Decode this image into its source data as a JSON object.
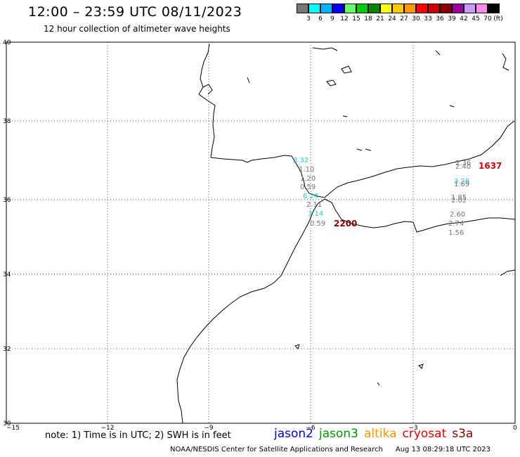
{
  "header": {
    "title": "12:00 – 23:59 UTC 08/11/2023",
    "subtitle": "12 hour collection of altimeter wave heights"
  },
  "legend": {
    "unit": "(ft)",
    "steps": [
      {
        "label": "3",
        "color": "#777777"
      },
      {
        "label": "6",
        "color": "#00ffff"
      },
      {
        "label": "9",
        "color": "#00b4ff"
      },
      {
        "label": "12",
        "color": "#0000ff"
      },
      {
        "label": "15",
        "color": "#66ff66"
      },
      {
        "label": "18",
        "color": "#00cc00"
      },
      {
        "label": "21",
        "color": "#008800"
      },
      {
        "label": "24",
        "color": "#ffff00"
      },
      {
        "label": "27",
        "color": "#ffcc00"
      },
      {
        "label": "30",
        "color": "#ff9900"
      },
      {
        "label": "33",
        "color": "#ff0000"
      },
      {
        "label": "36",
        "color": "#cc0000"
      },
      {
        "label": "39",
        "color": "#880000"
      },
      {
        "label": "42",
        "color": "#990099"
      },
      {
        "label": "45",
        "color": "#cc99ff"
      },
      {
        "label": "70",
        "color": "#ff88ee"
      },
      {
        "label": "",
        "color": "#000000"
      }
    ]
  },
  "axes": {
    "lon_ticks": [
      "−15",
      "−12",
      "−9",
      "−6",
      "−3",
      "0"
    ],
    "lat_ticks": [
      "40",
      "38",
      "36",
      "34",
      "32",
      "30"
    ]
  },
  "observations": [
    {
      "text": "3.32",
      "color": "#22cccc"
    },
    {
      "text": "1.10",
      "color": "#777777"
    },
    {
      "text": "1.20",
      "color": "#777777"
    },
    {
      "text": "0.59",
      "color": "#777777"
    },
    {
      "text": "6.24",
      "color": "#22cccc"
    },
    {
      "text": "2.11",
      "color": "#777777"
    },
    {
      "text": "3.14",
      "color": "#22cccc"
    },
    {
      "text": "0.59",
      "color": "#777777"
    },
    {
      "text": "2200",
      "color": "#8b0000"
    },
    {
      "text": "2.36",
      "color": "#777777"
    },
    {
      "text": "2.40",
      "color": "#777777"
    },
    {
      "text": "1637",
      "color": "#dd0000"
    },
    {
      "text": "3.28",
      "color": "#22cccc"
    },
    {
      "text": "1.69",
      "color": "#777777"
    },
    {
      "text": "1.85",
      "color": "#777777"
    },
    {
      "text": "2.02",
      "color": "#777777"
    },
    {
      "text": "2.60",
      "color": "#777777"
    },
    {
      "text": "2.74",
      "color": "#777777"
    },
    {
      "text": "1.56",
      "color": "#777777"
    }
  ],
  "footer": {
    "note": "note: 1) Time is in UTC; 2) SWH is in feet",
    "satellites": [
      {
        "name": "jason2",
        "color": "#0000ee"
      },
      {
        "name": "jason3",
        "color": "#009900"
      },
      {
        "name": "altika",
        "color": "#ff9900"
      },
      {
        "name": "cryosat",
        "color": "#ee0000"
      },
      {
        "name": "s3a",
        "color": "#880000"
      }
    ],
    "credit": "NOAA/NESDIS Center for Satellite Applications and Research",
    "timestamp": "Aug 13 08:29:18 UTC 2023"
  }
}
